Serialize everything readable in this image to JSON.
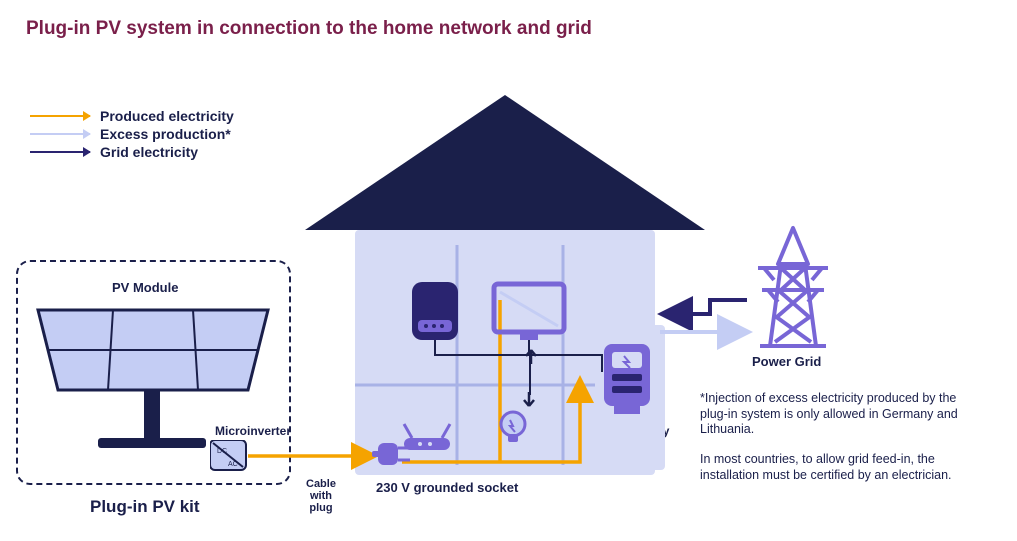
{
  "title": {
    "text": "Plug-in PV system in connection to the home network and grid",
    "color": "#7a1f4a"
  },
  "legend": {
    "items": [
      {
        "label": "Produced electricity",
        "color": "#f5a300"
      },
      {
        "label": "Excess production*",
        "color": "#c4cdf4"
      },
      {
        "label": "Grid electricity",
        "color": "#2a2470"
      }
    ],
    "text_color": "#1a1f4a"
  },
  "palette": {
    "dark_navy": "#1a1f4a",
    "navy": "#2a2470",
    "purple": "#7866d6",
    "light_fill": "#d6dbf5",
    "pale_fill": "#c4cdf4",
    "house_roof": "#1a1f4a",
    "house_wall": "#d6dbf5",
    "orange": "#f5a300"
  },
  "labels": {
    "pv_module": "PV Module",
    "microinverter": "Microinverter",
    "cable": "Cable\nwith\nplug",
    "socket": "230 V grounded socket",
    "meter": "Electricity\nMeter",
    "power_grid": "Power Grid",
    "pv_kit_title": "Plug-in PV kit"
  },
  "footnote": {
    "p1": "*Injection of excess electricity produced by the plug-in system is only allowed in Germany and Lithuania.",
    "p2": "In most countries, to allow grid feed-in, the installation must be certified by an electrician."
  },
  "diagram": {
    "type": "infographic",
    "arrows": {
      "style": "solid",
      "width": 3,
      "flows": [
        {
          "name": "produced",
          "from": "microinverter",
          "to": "socket→house-loads→meter",
          "color": "#f5a300"
        },
        {
          "name": "grid",
          "from": "power-grid",
          "to": "meter→house-loads",
          "color": "#2a2470"
        },
        {
          "name": "excess",
          "from": "meter",
          "to": "power-grid",
          "color": "#c4cdf4"
        }
      ]
    },
    "nodes": [
      {
        "id": "pv-module",
        "label": "PV Module"
      },
      {
        "id": "microinverter",
        "label": "Microinverter"
      },
      {
        "id": "plug",
        "label": "Cable with plug"
      },
      {
        "id": "socket",
        "label": "230 V grounded socket"
      },
      {
        "id": "router"
      },
      {
        "id": "fridge"
      },
      {
        "id": "tv"
      },
      {
        "id": "lightbulb"
      },
      {
        "id": "meter",
        "label": "Electricity Meter"
      },
      {
        "id": "power-grid",
        "label": "Power Grid"
      }
    ],
    "background": "#ffffff"
  }
}
